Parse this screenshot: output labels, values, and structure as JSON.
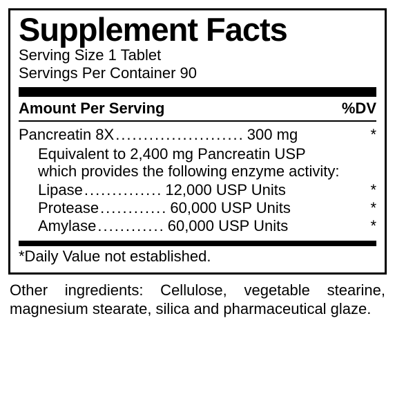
{
  "title": "Supplement Facts",
  "serving_size_label": "Serving Size 1 Tablet",
  "servings_label": "Servings Per Container 90",
  "header": {
    "amount": "Amount Per Serving",
    "dv": "%DV"
  },
  "main": {
    "name": "Pancreatin 8X",
    "amount": "300 mg",
    "dv": "*"
  },
  "equiv_note": "Equivalent to 2,400 mg Pancreatin USP which provides the following enzyme activity:",
  "enzymes": [
    {
      "name": "Lipase",
      "amount": "12,000 USP Units",
      "dv": "*"
    },
    {
      "name": "Protease",
      "amount": "60,000 USP Units",
      "dv": "*"
    },
    {
      "name": "Amylase",
      "amount": "60,000 USP Units",
      "dv": "*"
    }
  ],
  "footnote": "*Daily Value not established.",
  "other_ing": "Other ingredients: Cellulose, vegetable stearine, magnesium stearate, silica and pharmaceutical glaze.",
  "leader_main": ".......................",
  "leaders": [
    "..............",
    "............",
    "............"
  ]
}
